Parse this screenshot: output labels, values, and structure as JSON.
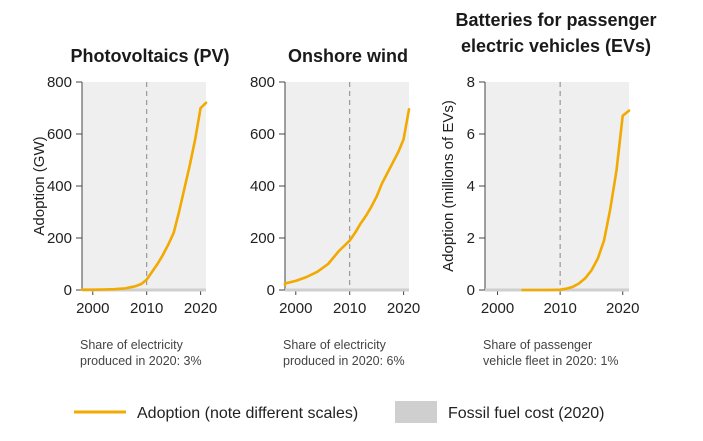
{
  "legend": {
    "adoption_label": "Adoption (note different scales)",
    "fossil_label": "Fossil fuel cost (2020)"
  },
  "colors": {
    "adoption": "#f2a900",
    "fossil": "#cfcfcf",
    "plot_bg": "#efefef",
    "dashed": "#888888"
  },
  "chart_data": [
    {
      "type": "line",
      "title": [
        "Photovoltaics (PV)"
      ],
      "xlabel": "",
      "ylabel": "Adoption (GW)",
      "xlim": [
        1998,
        2021
      ],
      "ylim": [
        0,
        800
      ],
      "xticks": [
        2000,
        2010,
        2020
      ],
      "yticks": [
        0,
        200,
        400,
        600,
        800
      ],
      "marker_year": 2010,
      "note": [
        "Share of electricity",
        "produced in 2020: 3%"
      ],
      "series": [
        {
          "x": [
            1998,
            2000,
            2002,
            2004,
            2006,
            2008,
            2009,
            2010,
            2011,
            2012,
            2013,
            2014,
            2015,
            2016,
            2017,
            2018,
            2019,
            2020,
            2021
          ],
          "y": [
            1,
            1,
            2,
            3,
            6,
            15,
            23,
            40,
            70,
            100,
            135,
            175,
            220,
            300,
            390,
            480,
            580,
            700,
            720
          ]
        }
      ]
    },
    {
      "type": "line",
      "title": [
        "Onshore wind"
      ],
      "xlabel": "",
      "ylabel": "",
      "xlim": [
        1998,
        2021
      ],
      "ylim": [
        0,
        800
      ],
      "xticks": [
        2000,
        2010,
        2020
      ],
      "yticks": [
        0,
        200,
        400,
        600,
        800
      ],
      "marker_year": 2010,
      "note": [
        "Share of electricity",
        "produced in 2020: 6%"
      ],
      "series": [
        {
          "x": [
            1997,
            1998,
            2000,
            2002,
            2004,
            2006,
            2008,
            2009,
            2010,
            2011,
            2012,
            2013,
            2014,
            2015,
            2016,
            2017,
            2018,
            2019,
            2020,
            2021
          ],
          "y": [
            20,
            25,
            35,
            50,
            70,
            100,
            150,
            170,
            190,
            220,
            255,
            285,
            320,
            360,
            410,
            450,
            490,
            530,
            580,
            695
          ]
        }
      ]
    },
    {
      "type": "line",
      "title": [
        "Batteries for passenger",
        "electric vehicles (EVs)"
      ],
      "xlabel": "",
      "ylabel": "Adoption (millions of EVs)",
      "xlim": [
        1998,
        2021
      ],
      "ylim": [
        0,
        8
      ],
      "xticks": [
        2000,
        2010,
        2020
      ],
      "yticks": [
        0,
        2,
        4,
        6,
        8
      ],
      "marker_year": 2010,
      "note": [
        "Share of passenger",
        "vehicle fleet in 2020: 1%"
      ],
      "series": [
        {
          "x": [
            2004,
            2008,
            2010,
            2011,
            2012,
            2013,
            2014,
            2015,
            2016,
            2017,
            2018,
            2019,
            2020,
            2021
          ],
          "y": [
            0,
            0,
            0.01,
            0.05,
            0.12,
            0.25,
            0.45,
            0.75,
            1.2,
            1.9,
            3.1,
            4.6,
            6.7,
            6.9
          ]
        }
      ]
    }
  ]
}
